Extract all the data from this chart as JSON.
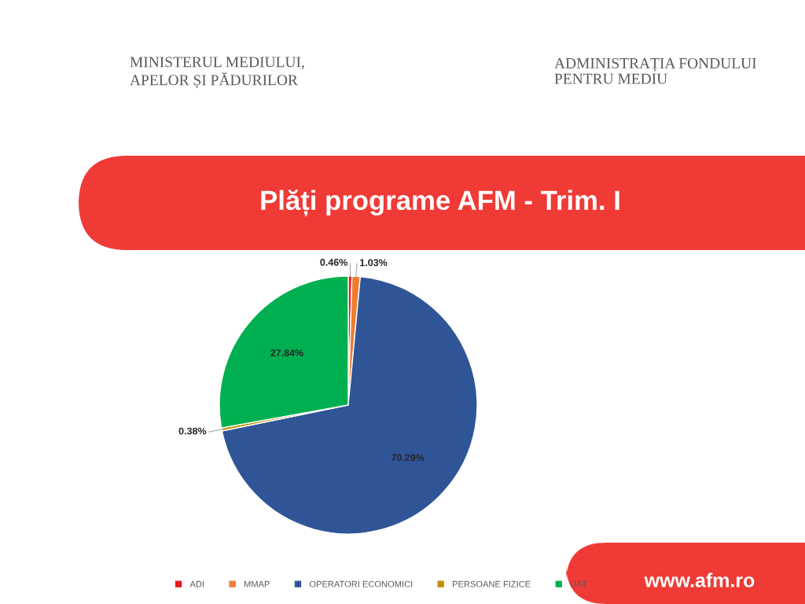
{
  "chart_data": {
    "type": "pie",
    "title": "Plăți programe AFM - Trim. I",
    "categories": [
      "ADI",
      "MMAP",
      "OPERATORI ECONOMICI",
      "PERSOANE FIZICE",
      "UAT"
    ],
    "values": [
      0.46,
      1.03,
      70.29,
      0.38,
      27.84
    ],
    "colors": [
      "#e8181c",
      "#ed7d31",
      "#2f5597",
      "#bf9000",
      "#00b050"
    ],
    "value_labels": [
      "0.46%",
      "1.03%",
      "70.29%",
      "0.38%",
      "27.84%"
    ],
    "legend": "bottom",
    "annotations": [
      "MINISTERUL MEDIULUI,\nAPELOR ȘI PĂDURILOR",
      "ADMINISTRAȚIA FONDULUI\nPENTRU MEDIU",
      "www.afm.ro"
    ]
  }
}
